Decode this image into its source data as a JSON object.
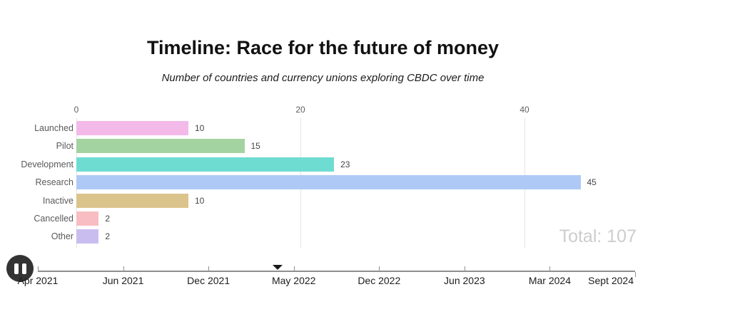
{
  "header": {
    "title": "Timeline: Race for the future of money",
    "subtitle": "Number of countries and currency unions exploring CBDC over time"
  },
  "chart_data": {
    "type": "bar",
    "orientation": "horizontal",
    "title": "Timeline: Race for the future of money",
    "subtitle": "Number of countries and currency unions exploring CBDC over time",
    "categories": [
      "Launched",
      "Pilot",
      "Development",
      "Research",
      "Inactive",
      "Cancelled",
      "Other"
    ],
    "values": [
      10,
      15,
      23,
      45,
      10,
      2,
      2
    ],
    "bar_colors": [
      "#f3b9e9",
      "#a2d3a0",
      "#6fdcd2",
      "#aec9f6",
      "#dbc48c",
      "#f8bdc2",
      "#c9bdf0"
    ],
    "value_axis_ticks": [
      0,
      20,
      40
    ],
    "value_axis_max": 50,
    "grid": true,
    "legend": false,
    "total_label": "Total: 107"
  },
  "timeline": {
    "dates": [
      "Apr 2021",
      "Jun 2021",
      "Dec 2021",
      "May 2022",
      "Dec 2022",
      "Jun 2023",
      "Mar 2024",
      "Sept 2024"
    ],
    "marker_interval": 2.81,
    "play_state_icon": "pause-icon"
  },
  "colors": {
    "grid": "#e4e4e4",
    "axis_line": "#8f8f8f",
    "total_text": "#cdcdcd",
    "pause_button_bg": "#333333",
    "title_text": "#111111"
  }
}
